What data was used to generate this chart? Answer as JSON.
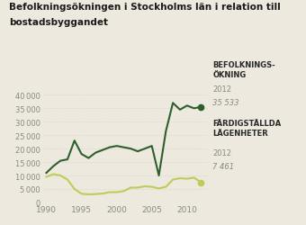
{
  "title_line1": "Befolkningsökningen i Stockholms län i relation till",
  "title_line2": "bostadsbyggandet",
  "background_color": "#ede9de",
  "dark_green": "#2d5f2d",
  "light_green": "#bfcc5a",
  "years_pop": [
    1990,
    1991,
    1992,
    1993,
    1994,
    1995,
    1996,
    1997,
    1998,
    1999,
    2000,
    2001,
    2002,
    2003,
    2004,
    2005,
    2006,
    2007,
    2008,
    2009,
    2010,
    2011,
    2012
  ],
  "pop_growth": [
    11000,
    13500,
    15500,
    16000,
    23000,
    18000,
    16500,
    18500,
    19500,
    20500,
    21000,
    20500,
    20000,
    19000,
    20000,
    21000,
    10000,
    26500,
    37000,
    34500,
    36000,
    35000,
    35533
  ],
  "years_apt": [
    1990,
    1991,
    1992,
    1993,
    1994,
    1995,
    1996,
    1997,
    1998,
    1999,
    2000,
    2001,
    2002,
    2003,
    2004,
    2005,
    2006,
    2007,
    2008,
    2009,
    2010,
    2011,
    2012
  ],
  "apt_completed": [
    9500,
    10500,
    10000,
    8500,
    5000,
    3200,
    3000,
    3100,
    3300,
    3800,
    3800,
    4200,
    5500,
    5500,
    6000,
    5800,
    5200,
    5800,
    8500,
    9000,
    8800,
    9200,
    7461
  ],
  "label_pop_bold": "BEFOLKNINGS-\nÖKNING",
  "label_pop_year": "2012",
  "label_pop_val": "35 533",
  "label_apt_bold": "FÄRDIGSTÄLLDA\nLÄGENHETER",
  "label_apt_year": "2012",
  "label_apt_val": "7 461",
  "ylim": [
    0,
    42000
  ],
  "yticks": [
    0,
    5000,
    10000,
    15000,
    20000,
    25000,
    30000,
    35000,
    40000
  ],
  "xlim": [
    1989.5,
    2013
  ],
  "xticks": [
    1990,
    1995,
    2000,
    2005,
    2010
  ],
  "grid_color": "#d0ccc0",
  "tick_color": "#888888",
  "annotation_color": "#888888",
  "label_bold_color": "#2a2a2a"
}
